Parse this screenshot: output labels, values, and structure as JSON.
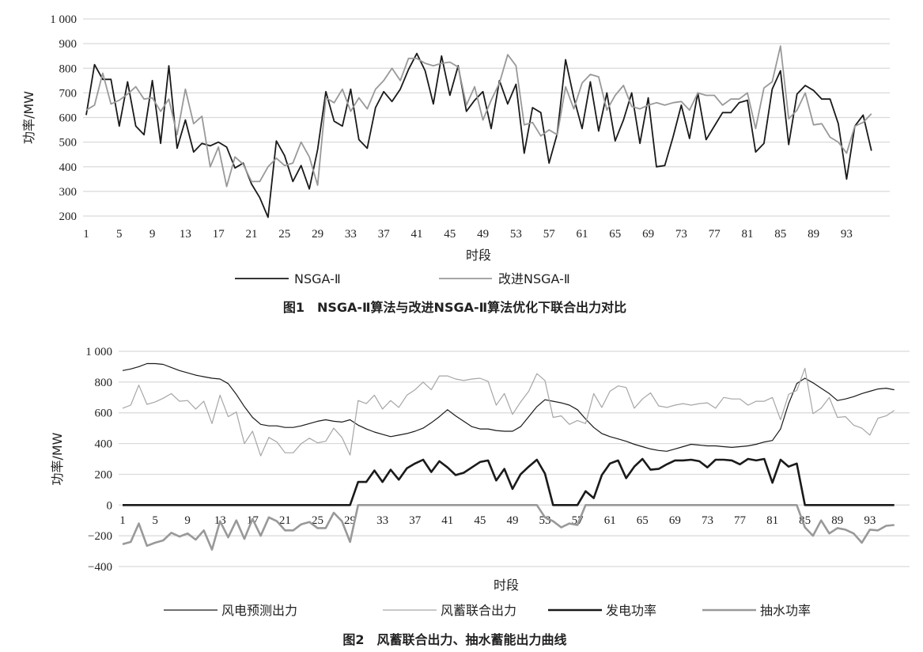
{
  "chart_data": [
    {
      "type": "line",
      "title": "图1　NSGA-Ⅱ算法与改进NSGA-Ⅱ算法优化下联合出力对比",
      "xlabel": "时段",
      "ylabel": "功率/MW",
      "ylim": [
        200,
        1000
      ],
      "yticks": [
        200,
        300,
        400,
        500,
        600,
        700,
        800,
        900,
        1000
      ],
      "ytick_labels": [
        "200",
        "300",
        "400",
        "500",
        "600",
        "700",
        "800",
        "900",
        "1 000"
      ],
      "xtick_labels": [
        "1",
        "5",
        "9",
        "13",
        "17",
        "21",
        "25",
        "29",
        "33",
        "37",
        "41",
        "45",
        "49",
        "53",
        "57",
        "61",
        "65",
        "69",
        "73",
        "77",
        "81",
        "85",
        "89",
        "93"
      ],
      "grid": true,
      "legend_position": "bottom",
      "series": [
        {
          "name": "NSGA-Ⅱ",
          "color": "#1a1a1a",
          "values": [
            610,
            815,
            755,
            755,
            565,
            745,
            565,
            530,
            750,
            495,
            810,
            475,
            590,
            460,
            495,
            485,
            500,
            480,
            395,
            415,
            330,
            275,
            195,
            505,
            445,
            340,
            405,
            310,
            470,
            705,
            585,
            565,
            715,
            510,
            475,
            640,
            705,
            665,
            715,
            795,
            860,
            790,
            655,
            850,
            690,
            810,
            625,
            670,
            705,
            555,
            750,
            655,
            735,
            455,
            640,
            620,
            415,
            535,
            835,
            680,
            555,
            745,
            545,
            700,
            505,
            590,
            700,
            495,
            680,
            400,
            405,
            520,
            650,
            515,
            700,
            510,
            565,
            620,
            620,
            660,
            670,
            460,
            495,
            715,
            790,
            490,
            695,
            730,
            710,
            675,
            675,
            575,
            350,
            565,
            610,
            465
          ]
        },
        {
          "name": "改进NSGA-Ⅱ",
          "color": "#999999",
          "values": [
            630,
            650,
            780,
            655,
            670,
            695,
            725,
            675,
            680,
            625,
            675,
            530,
            715,
            575,
            605,
            400,
            480,
            320,
            440,
            410,
            340,
            340,
            400,
            435,
            405,
            415,
            500,
            440,
            325,
            680,
            660,
            715,
            625,
            680,
            635,
            715,
            750,
            800,
            750,
            840,
            840,
            820,
            810,
            820,
            825,
            805,
            650,
            725,
            590,
            670,
            740,
            855,
            810,
            570,
            580,
            525,
            550,
            530,
            725,
            635,
            740,
            775,
            765,
            630,
            690,
            730,
            645,
            635,
            650,
            660,
            650,
            660,
            665,
            630,
            700,
            690,
            690,
            650,
            675,
            675,
            700,
            555,
            720,
            745,
            890,
            595,
            630,
            700,
            570,
            575,
            520,
            500,
            455,
            565,
            580,
            615
          ]
        }
      ]
    },
    {
      "type": "line",
      "title": "图2　风蓄联合出力、抽水蓄能出力曲线",
      "xlabel": "时段",
      "ylabel": "功率/MW",
      "ylim": [
        -400,
        1000
      ],
      "yticks": [
        -400,
        -200,
        0,
        200,
        400,
        600,
        800,
        1000
      ],
      "ytick_labels": [
        "−400",
        "−200",
        "0",
        "200",
        "400",
        "600",
        "800",
        "1 000"
      ],
      "xtick_labels": [
        "1",
        "5",
        "9",
        "13",
        "17",
        "21",
        "25",
        "29",
        "33",
        "37",
        "41",
        "45",
        "49",
        "53",
        "57",
        "61",
        "65",
        "69",
        "73",
        "77",
        "81",
        "85",
        "89",
        "93"
      ],
      "grid": true,
      "legend_position": "bottom",
      "series": [
        {
          "name": "风电预测出力",
          "color": "#1a1a1a",
          "width": 1.2,
          "values": [
            875,
            885,
            900,
            920,
            920,
            915,
            895,
            875,
            860,
            845,
            835,
            825,
            820,
            790,
            720,
            640,
            570,
            525,
            515,
            515,
            505,
            505,
            515,
            530,
            545,
            555,
            545,
            540,
            555,
            520,
            495,
            475,
            460,
            445,
            455,
            465,
            480,
            500,
            535,
            575,
            620,
            580,
            545,
            510,
            495,
            495,
            485,
            480,
            480,
            510,
            575,
            640,
            685,
            675,
            665,
            650,
            620,
            560,
            505,
            465,
            445,
            430,
            415,
            395,
            380,
            365,
            355,
            350,
            365,
            380,
            395,
            390,
            385,
            385,
            380,
            375,
            380,
            385,
            395,
            410,
            420,
            495,
            660,
            790,
            825,
            795,
            760,
            725,
            680,
            690,
            705,
            725,
            740,
            755,
            760,
            750
          ]
        },
        {
          "name": "风蓄联合出力",
          "color": "#a6a6a6",
          "width": 1.2,
          "values": [
            630,
            650,
            780,
            655,
            670,
            695,
            725,
            675,
            680,
            625,
            675,
            530,
            715,
            575,
            605,
            400,
            480,
            320,
            440,
            410,
            340,
            340,
            400,
            435,
            405,
            415,
            500,
            440,
            325,
            680,
            660,
            715,
            625,
            680,
            635,
            715,
            750,
            800,
            750,
            840,
            840,
            820,
            810,
            820,
            825,
            805,
            650,
            725,
            590,
            670,
            740,
            855,
            810,
            570,
            580,
            525,
            550,
            530,
            725,
            635,
            740,
            775,
            765,
            630,
            690,
            730,
            645,
            635,
            650,
            660,
            650,
            660,
            665,
            630,
            700,
            690,
            690,
            650,
            675,
            675,
            700,
            555,
            720,
            745,
            890,
            595,
            630,
            700,
            570,
            575,
            520,
            500,
            455,
            565,
            580,
            615
          ]
        },
        {
          "name": "发电功率",
          "color": "#1a1a1a",
          "width": 2.6,
          "values": [
            0,
            0,
            0,
            0,
            0,
            0,
            0,
            0,
            0,
            0,
            0,
            0,
            0,
            0,
            0,
            0,
            0,
            0,
            0,
            0,
            0,
            0,
            0,
            0,
            0,
            0,
            0,
            0,
            0,
            150,
            150,
            225,
            150,
            230,
            165,
            240,
            270,
            295,
            215,
            285,
            245,
            195,
            210,
            245,
            280,
            290,
            160,
            235,
            105,
            200,
            250,
            295,
            205,
            0,
            0,
            0,
            0,
            90,
            45,
            195,
            270,
            290,
            175,
            250,
            300,
            230,
            235,
            265,
            290,
            290,
            295,
            285,
            245,
            295,
            295,
            290,
            265,
            300,
            290,
            300,
            145,
            295,
            250,
            270,
            0,
            0,
            0,
            0,
            0,
            0,
            0,
            0,
            0,
            0,
            0,
            0
          ]
        },
        {
          "name": "抽水功率",
          "color": "#999999",
          "width": 2.6,
          "values": [
            -255,
            -240,
            -120,
            -265,
            -245,
            -230,
            -180,
            -205,
            -185,
            -225,
            -165,
            -290,
            -105,
            -210,
            -100,
            -220,
            -90,
            -200,
            -80,
            -105,
            -165,
            -165,
            -125,
            -110,
            -150,
            -150,
            -50,
            -105,
            -240,
            0,
            0,
            0,
            0,
            0,
            0,
            0,
            0,
            0,
            0,
            0,
            0,
            0,
            0,
            0,
            0,
            0,
            0,
            0,
            0,
            0,
            0,
            0,
            -80,
            -105,
            -145,
            -120,
            -130,
            0,
            0,
            0,
            0,
            0,
            0,
            0,
            0,
            0,
            0,
            0,
            0,
            0,
            0,
            0,
            0,
            0,
            0,
            0,
            0,
            0,
            0,
            0,
            0,
            0,
            0,
            0,
            -145,
            -200,
            -100,
            -185,
            -150,
            -160,
            -185,
            -245,
            -160,
            -165,
            -135,
            -130
          ]
        }
      ]
    }
  ]
}
